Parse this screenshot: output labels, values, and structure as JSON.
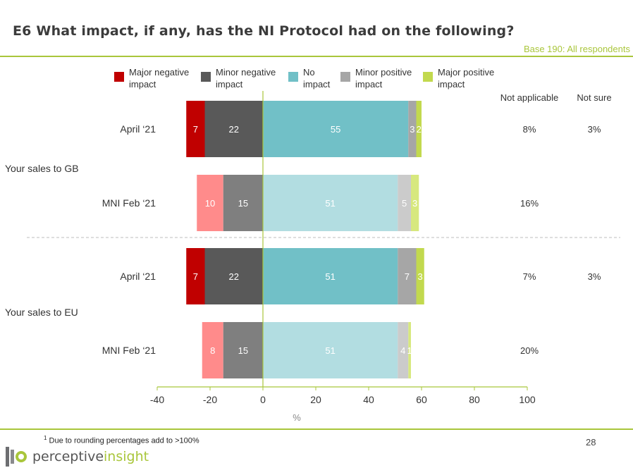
{
  "title": "E6 What impact, if any, has the NI Protocol had on the following?",
  "base_note": "Base 190: All respondents",
  "footnote_sup": "1",
  "footnote_text": " Due to rounding percentages add to >100%",
  "page_number": "28",
  "logo": {
    "word_main": "perceptive",
    "word_accent": "insight",
    "colors": [
      "#6d6e71",
      "#a9c63b"
    ]
  },
  "chart_data": {
    "type": "bar",
    "orientation": "horizontal-diverging",
    "xlabel": "%",
    "xlim": [
      -40,
      100
    ],
    "xticks": [
      -40,
      -20,
      0,
      20,
      40,
      60,
      80,
      100
    ],
    "legend": [
      "Major negative impact",
      "Minor negative impact",
      "No impact",
      "Minor positive impact",
      "Major positive impact"
    ],
    "legend_placement": "top",
    "colors": {
      "dark": [
        "#c00000",
        "#595959",
        "#71c0c7",
        "#a6a6a6",
        "#c2d94e"
      ],
      "light": [
        "#ff8b8b",
        "#7f7f7f",
        "#b2dde1",
        "#cbcbcb",
        "#d7e87e"
      ]
    },
    "extra_columns": [
      "Not applicable",
      "Not sure"
    ],
    "groups": [
      {
        "name": "Your sales to GB",
        "rows": [
          {
            "label": "April ‘21",
            "shade": "dark",
            "values": [
              7,
              22,
              55,
              3,
              2
            ],
            "labels": [
              "7",
              "22",
              "55",
              "3",
              "2"
            ],
            "not_applicable": "8%",
            "not_sure": "3%"
          },
          {
            "label": "MNI Feb ‘21",
            "shade": "light",
            "values": [
              10,
              15,
              51,
              5,
              3
            ],
            "labels": [
              "10",
              "15",
              "51",
              "5",
              "3"
            ],
            "not_applicable": "16%",
            "not_sure": ""
          }
        ]
      },
      {
        "name": "Your sales to EU",
        "rows": [
          {
            "label": "April ‘21",
            "shade": "dark",
            "values": [
              7,
              22,
              51,
              7,
              3
            ],
            "labels": [
              "7",
              "22",
              "51",
              "7",
              "3"
            ],
            "not_applicable": "7%",
            "not_sure": "3%"
          },
          {
            "label": "MNI Feb ‘21",
            "shade": "light",
            "values": [
              8,
              15,
              51,
              4,
              1
            ],
            "labels": [
              "8",
              "15",
              "51",
              "4",
              "1"
            ],
            "not_applicable": "20%",
            "not_sure": ""
          }
        ]
      }
    ]
  }
}
